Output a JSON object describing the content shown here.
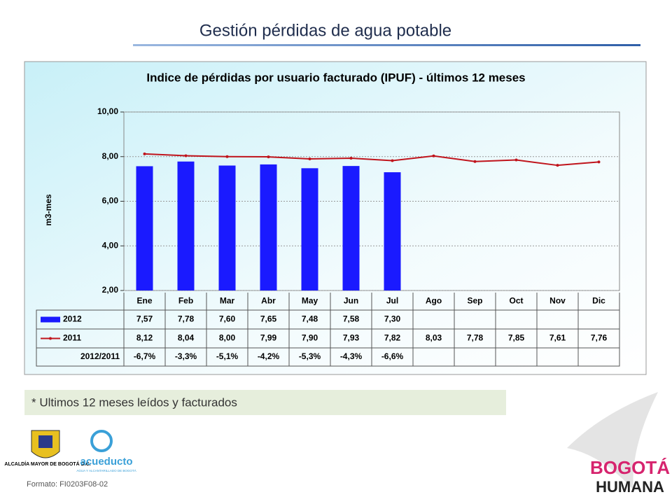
{
  "page_title": "Gestión pérdidas de agua potable",
  "chart_data": {
    "type": "bar_line",
    "title": "Indice de pérdidas por usuario facturado (IPUF) - últimos 12 meses",
    "y_label": "m3-mes",
    "categories": [
      "Ene",
      "Feb",
      "Mar",
      "Abr",
      "May",
      "Jun",
      "Jul",
      "Ago",
      "Sep",
      "Oct",
      "Nov",
      "Dic"
    ],
    "ylim": [
      2,
      10
    ],
    "yticks": [
      {
        "value": 2,
        "label": "2,00"
      },
      {
        "value": 4,
        "label": "4,00"
      },
      {
        "value": 6,
        "label": "6,00"
      },
      {
        "value": 8,
        "label": "8,00"
      },
      {
        "value": 10,
        "label": "10,00"
      }
    ],
    "grid": true,
    "series": [
      {
        "name": "2012",
        "type": "bar",
        "color": "#1a1aff",
        "values": [
          7.57,
          7.78,
          7.6,
          7.65,
          7.48,
          7.58,
          7.3,
          null,
          null,
          null,
          null,
          null
        ],
        "value_labels": [
          "7,57",
          "7,78",
          "7,60",
          "7,65",
          "7,48",
          "7,58",
          "7,30",
          null,
          null,
          null,
          null,
          null
        ]
      },
      {
        "name": "2011",
        "type": "line",
        "color": "#c0141c",
        "values": [
          8.12,
          8.04,
          8.0,
          7.99,
          7.9,
          7.93,
          7.82,
          8.03,
          7.78,
          7.85,
          7.61,
          7.76
        ],
        "value_labels": [
          "8,12",
          "8,04",
          "8,00",
          "7,99",
          "7,90",
          "7,93",
          "7,82",
          "8,03",
          "7,78",
          "7,85",
          "7,61",
          "7,76"
        ]
      }
    ],
    "ratio": {
      "name": "2012/2011",
      "values": [
        -6.7,
        -3.3,
        -5.1,
        -4.2,
        -5.3,
        -4.3,
        -6.6,
        null,
        null,
        null,
        null,
        null
      ],
      "value_labels": [
        "-6,7%",
        "-3,3%",
        "-5,1%",
        "-4,2%",
        "-5,3%",
        "-4,3%",
        "-6,6%",
        null,
        null,
        null,
        null,
        null
      ]
    }
  },
  "footnote": "* Ultimos 12 meses leídos y facturados",
  "logos": {
    "alcaldia": "ALCALDÍA MAYOR DE BOGOTÁ D.C.",
    "acueducto": "acueducto",
    "acueducto_sub": "AGUA Y ALCANTARILLADO DE BOGOTÁ",
    "bogota": "BOGOTÁ",
    "humana": "HUMANA"
  },
  "format_code": "Formato: FI0203F08-02"
}
